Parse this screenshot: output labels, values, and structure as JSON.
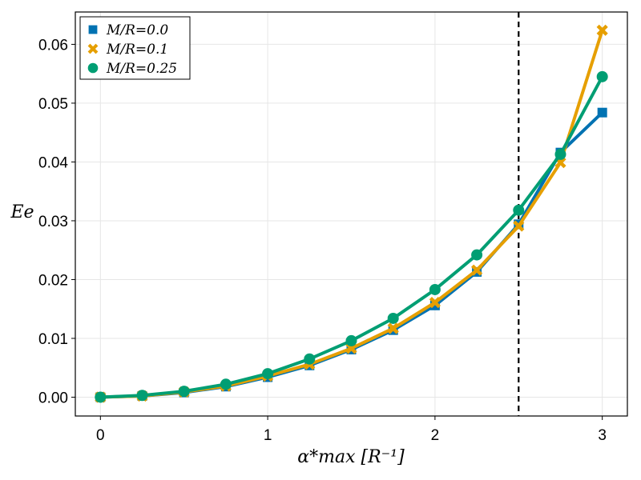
{
  "chart_data": {
    "type": "line",
    "xlabel": "α*max [R⁻¹]",
    "ylabel": "Ee",
    "xlim": [
      -0.15,
      3.15
    ],
    "ylim": [
      -0.0032,
      0.0655
    ],
    "x_ticks": [
      0,
      1,
      2,
      3
    ],
    "x_tick_labels": [
      "0",
      "1",
      "2",
      "3"
    ],
    "y_ticks": [
      0.0,
      0.01,
      0.02,
      0.03,
      0.04,
      0.05,
      0.06
    ],
    "y_tick_labels": [
      "0.00",
      "0.01",
      "0.02",
      "0.03",
      "0.04",
      "0.05",
      "0.06"
    ],
    "grid": true,
    "legend_position": "top-left",
    "reference_line": {
      "orientation": "vertical",
      "x": 2.5,
      "style": "dashed",
      "color": "#000000"
    },
    "x": [
      0,
      0.25,
      0.5,
      0.75,
      1.0,
      1.25,
      1.5,
      1.75,
      2.0,
      2.25,
      2.5,
      2.75,
      3.0
    ],
    "series": [
      {
        "name": "M/R=0.0",
        "color": "#0072b2",
        "marker": "square",
        "values": [
          0.0,
          0.0002,
          0.0008,
          0.0018,
          0.0034,
          0.0054,
          0.0081,
          0.0114,
          0.0156,
          0.0213,
          0.0294,
          0.0416,
          0.0484
        ]
      },
      {
        "name": "M/R=0.1",
        "color": "#e69f00",
        "marker": "cross",
        "values": [
          0.0,
          0.0002,
          0.0009,
          0.0019,
          0.0036,
          0.0056,
          0.0083,
          0.0117,
          0.0161,
          0.0216,
          0.0291,
          0.0399,
          0.0624
        ]
      },
      {
        "name": "M/R=0.25",
        "color": "#009e73",
        "marker": "circle",
        "values": [
          0.0,
          0.0003,
          0.001,
          0.0022,
          0.004,
          0.0065,
          0.0096,
          0.0134,
          0.0183,
          0.0242,
          0.0318,
          0.0413,
          0.0545
        ]
      }
    ]
  }
}
